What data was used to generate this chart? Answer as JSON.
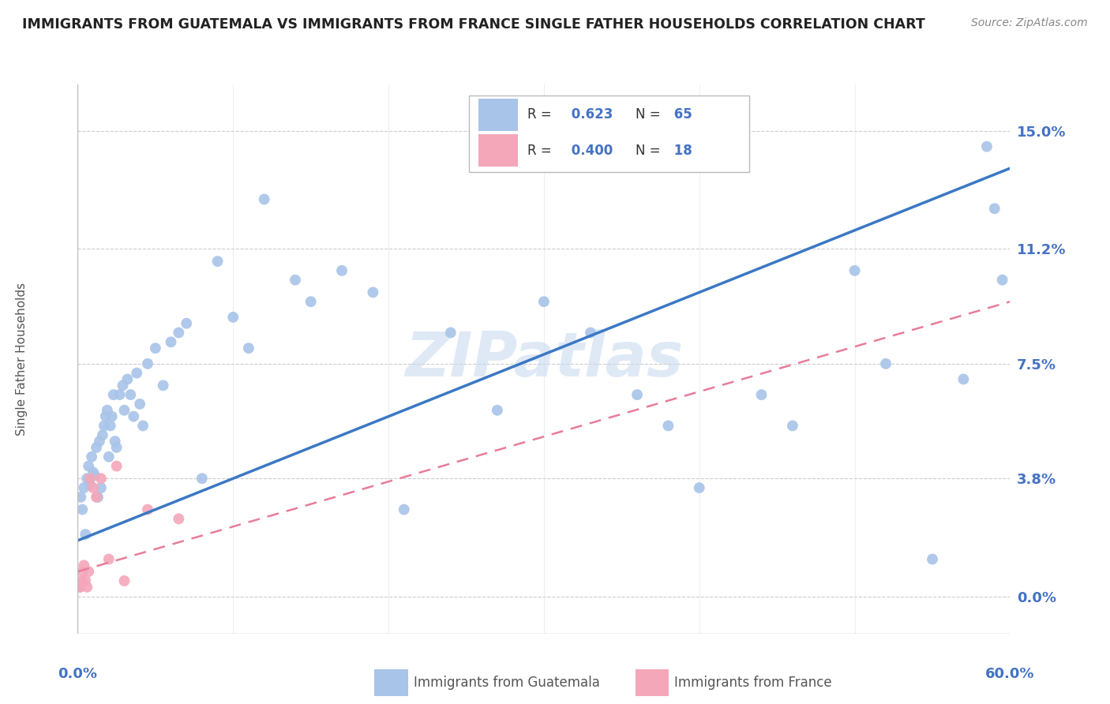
{
  "title": "IMMIGRANTS FROM GUATEMALA VS IMMIGRANTS FROM FRANCE SINGLE FATHER HOUSEHOLDS CORRELATION CHART",
  "source": "Source: ZipAtlas.com",
  "ylabel": "Single Father Households",
  "ytick_labels": [
    "0.0%",
    "3.8%",
    "7.5%",
    "11.2%",
    "15.0%"
  ],
  "ytick_values": [
    0.0,
    3.8,
    7.5,
    11.2,
    15.0
  ],
  "xlim": [
    0.0,
    60.0
  ],
  "ylim": [
    -1.2,
    16.5
  ],
  "guatemala_color": "#a8c4e8",
  "france_color": "#f4a7b9",
  "guatemala_line_color": "#3b78c4",
  "france_line_color": "#e87c99",
  "R_guatemala": 0.623,
  "N_guatemala": 65,
  "R_france": 0.4,
  "N_france": 18,
  "watermark": "ZIPatlas",
  "guatemala_points_x": [
    0.2,
    0.3,
    0.4,
    0.5,
    0.6,
    0.7,
    0.8,
    0.9,
    1.0,
    1.1,
    1.2,
    1.3,
    1.4,
    1.5,
    1.6,
    1.7,
    1.8,
    1.9,
    2.0,
    2.1,
    2.2,
    2.3,
    2.4,
    2.5,
    2.7,
    2.9,
    3.0,
    3.2,
    3.4,
    3.6,
    3.8,
    4.0,
    4.2,
    4.5,
    5.0,
    5.5,
    6.0,
    6.5,
    7.0,
    8.0,
    9.0,
    10.0,
    11.0,
    12.0,
    14.0,
    15.0,
    17.0,
    19.0,
    21.0,
    24.0,
    27.0,
    30.0,
    33.0,
    36.0,
    38.0,
    40.0,
    44.0,
    46.0,
    50.0,
    52.0,
    55.0,
    57.0,
    58.5,
    59.0,
    59.5
  ],
  "guatemala_points_y": [
    3.2,
    2.8,
    3.5,
    2.0,
    3.8,
    4.2,
    3.6,
    4.5,
    4.0,
    3.9,
    4.8,
    3.2,
    5.0,
    3.5,
    5.2,
    5.5,
    5.8,
    6.0,
    4.5,
    5.5,
    5.8,
    6.5,
    5.0,
    4.8,
    6.5,
    6.8,
    6.0,
    7.0,
    6.5,
    5.8,
    7.2,
    6.2,
    5.5,
    7.5,
    8.0,
    6.8,
    8.2,
    8.5,
    8.8,
    3.8,
    10.8,
    9.0,
    8.0,
    12.8,
    10.2,
    9.5,
    10.5,
    9.8,
    2.8,
    8.5,
    6.0,
    9.5,
    8.5,
    6.5,
    5.5,
    3.5,
    6.5,
    5.5,
    10.5,
    7.5,
    1.2,
    7.0,
    14.5,
    12.5,
    10.2
  ],
  "france_points_x": [
    0.1,
    0.15,
    0.2,
    0.25,
    0.3,
    0.4,
    0.5,
    0.6,
    0.7,
    0.8,
    1.0,
    1.2,
    1.5,
    2.0,
    2.5,
    3.0,
    4.5,
    6.5
  ],
  "france_points_y": [
    0.3,
    0.3,
    0.4,
    0.5,
    0.8,
    1.0,
    0.5,
    0.3,
    0.8,
    3.8,
    3.5,
    3.2,
    3.8,
    1.2,
    4.2,
    0.5,
    2.8,
    2.5
  ],
  "guatemala_line_x": [
    0.0,
    60.0
  ],
  "guatemala_line_y": [
    1.8,
    13.8
  ],
  "france_line_x": [
    0.0,
    60.0
  ],
  "france_line_y": [
    0.8,
    9.5
  ],
  "xtick_positions": [
    0.0,
    10.0,
    20.0,
    30.0,
    40.0,
    50.0,
    60.0
  ],
  "grid_color": "#cccccc",
  "background_color": "#ffffff",
  "axis_label_color": "#4472c4",
  "title_color": "#222222",
  "title_fontsize": 12.5,
  "marker_size": 100,
  "legend_label_guatemala": "Immigrants from Guatemala",
  "legend_label_france": "Immigrants from France"
}
